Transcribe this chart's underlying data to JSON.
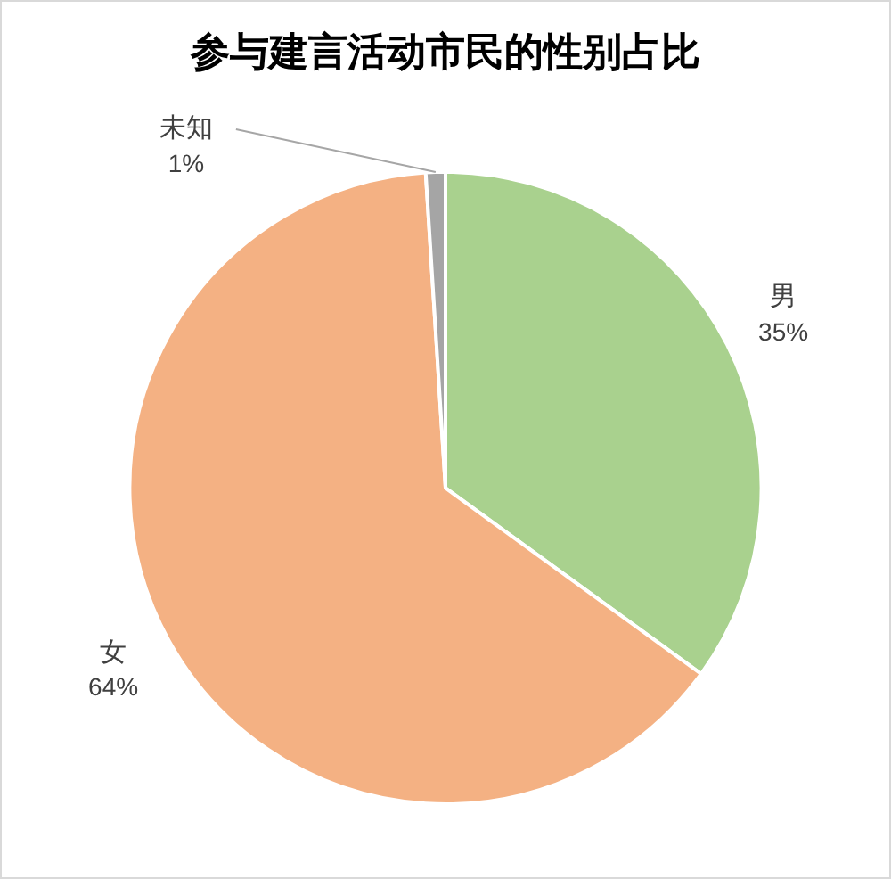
{
  "chart_data": {
    "type": "pie",
    "title": "参与建言活动市民的性别占比",
    "categories": [
      "男",
      "女",
      "未知"
    ],
    "values": [
      35,
      64,
      1
    ],
    "colors": [
      "#a9d18e",
      "#f4b183",
      "#a5a5a5"
    ],
    "value_labels": [
      "35%",
      "64%",
      "1%"
    ],
    "legend": false
  }
}
